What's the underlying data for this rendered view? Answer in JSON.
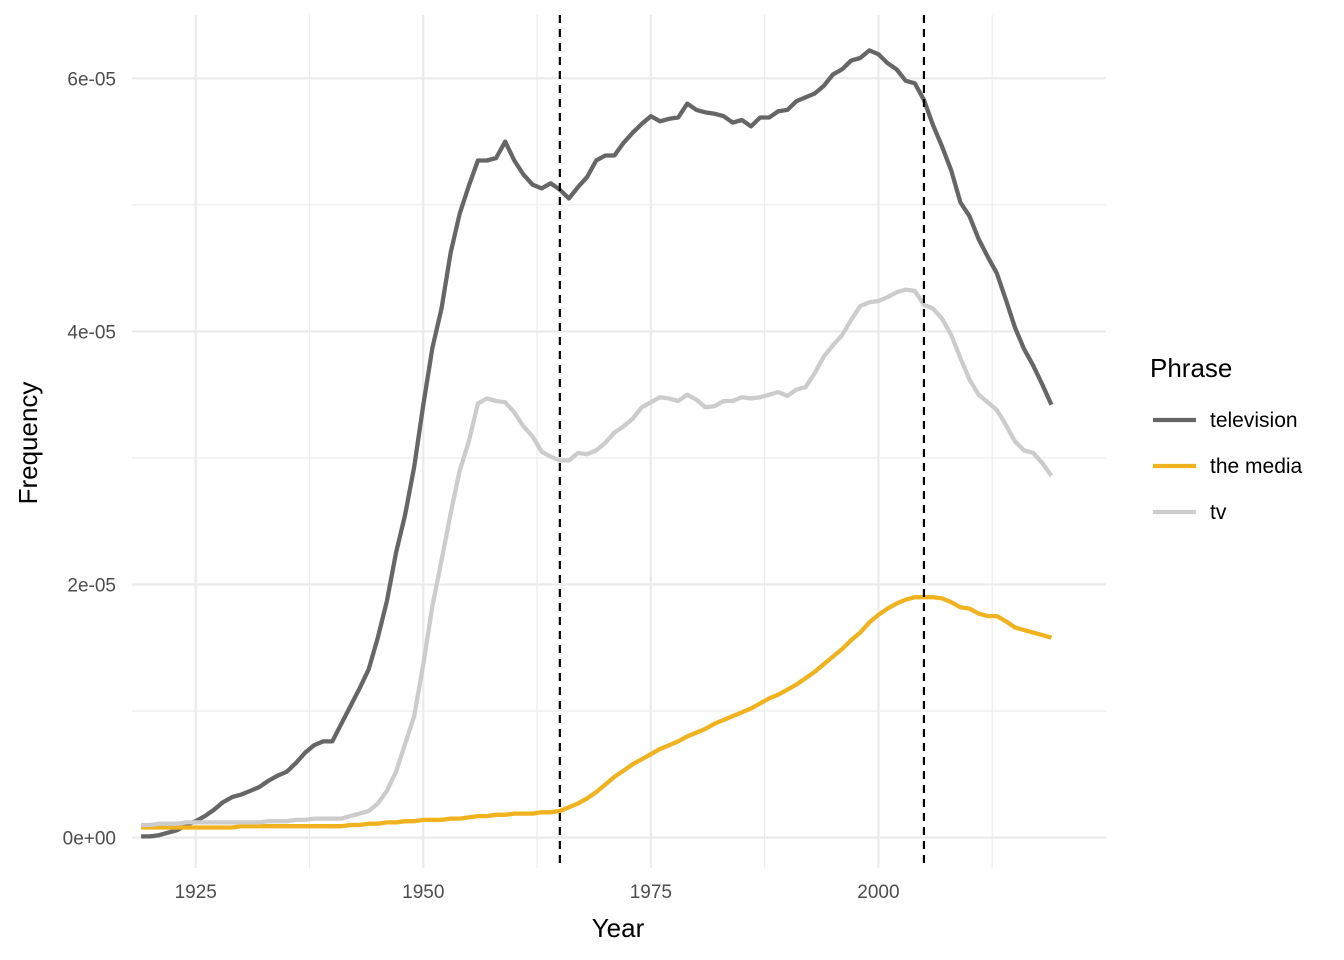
{
  "chart_data": {
    "type": "line",
    "xlabel": "Year",
    "ylabel": "Frequency",
    "xlim": [
      1918,
      2025
    ],
    "ylim": [
      -2.4e-06,
      6.5e-05
    ],
    "x_ticks": [
      1925,
      1950,
      1975,
      2000
    ],
    "x_tick_labels": [
      "1925",
      "1950",
      "1975",
      "2000"
    ],
    "y_ticks": [
      0,
      2e-05,
      4e-05,
      6e-05
    ],
    "y_tick_labels": [
      "0e+00",
      "2e-05",
      "4e-05",
      "6e-05"
    ],
    "y_minor_ticks": [
      1e-05,
      3e-05,
      5e-05
    ],
    "x_minor_ticks": [
      1937.5,
      1962.5,
      1987.5,
      2012.5
    ],
    "grid": true,
    "legend": {
      "title": "Phrase",
      "position": "right"
    },
    "vlines": [
      1965,
      2005
    ],
    "x": [
      1919,
      1920,
      1921,
      1922,
      1923,
      1924,
      1925,
      1926,
      1927,
      1928,
      1929,
      1930,
      1931,
      1932,
      1933,
      1934,
      1935,
      1936,
      1937,
      1938,
      1939,
      1940,
      1941,
      1942,
      1943,
      1944,
      1945,
      1946,
      1947,
      1948,
      1949,
      1950,
      1951,
      1952,
      1953,
      1954,
      1955,
      1956,
      1957,
      1958,
      1959,
      1960,
      1961,
      1962,
      1963,
      1964,
      1965,
      1966,
      1967,
      1968,
      1969,
      1970,
      1971,
      1972,
      1973,
      1974,
      1975,
      1976,
      1977,
      1978,
      1979,
      1980,
      1981,
      1982,
      1983,
      1984,
      1985,
      1986,
      1987,
      1988,
      1989,
      1990,
      1991,
      1992,
      1993,
      1994,
      1995,
      1996,
      1997,
      1998,
      1999,
      2000,
      2001,
      2002,
      2003,
      2004,
      2005,
      2006,
      2007,
      2008,
      2009,
      2010,
      2011,
      2012,
      2013,
      2014,
      2015,
      2016,
      2017,
      2018,
      2019
    ],
    "series": [
      {
        "name": "television",
        "color": "#666666",
        "values": [
          1e-07,
          1e-07,
          2e-07,
          4e-07,
          6e-07,
          1e-06,
          1.3e-06,
          1.7e-06,
          2.2e-06,
          2.8e-06,
          3.2e-06,
          3.4e-06,
          3.7e-06,
          4e-06,
          4.5e-06,
          4.9e-06,
          5.2e-06,
          5.9e-06,
          6.7e-06,
          7.3e-06,
          7.6e-06,
          7.6e-06,
          9e-06,
          1.04e-05,
          1.18e-05,
          1.33e-05,
          1.58e-05,
          1.87e-05,
          2.25e-05,
          2.55e-05,
          2.93e-05,
          3.42e-05,
          3.87e-05,
          4.18e-05,
          4.62e-05,
          4.93e-05,
          5.15e-05,
          5.35e-05,
          5.35e-05,
          5.37e-05,
          5.5e-05,
          5.35e-05,
          5.24e-05,
          5.16e-05,
          5.13e-05,
          5.17e-05,
          5.12e-05,
          5.05e-05,
          5.14e-05,
          5.22e-05,
          5.35e-05,
          5.39e-05,
          5.39e-05,
          5.49e-05,
          5.57e-05,
          5.64e-05,
          5.7e-05,
          5.66e-05,
          5.68e-05,
          5.69e-05,
          5.8e-05,
          5.75e-05,
          5.73e-05,
          5.72e-05,
          5.7e-05,
          5.65e-05,
          5.67e-05,
          5.62e-05,
          5.69e-05,
          5.69e-05,
          5.74e-05,
          5.75e-05,
          5.82e-05,
          5.85e-05,
          5.88e-05,
          5.94e-05,
          6.03e-05,
          6.07e-05,
          6.14e-05,
          6.16e-05,
          6.22e-05,
          6.19e-05,
          6.12e-05,
          6.07e-05,
          5.98e-05,
          5.96e-05,
          5.83e-05,
          5.63e-05,
          5.46e-05,
          5.27e-05,
          5.02e-05,
          4.91e-05,
          4.73e-05,
          4.59e-05,
          4.46e-05,
          4.25e-05,
          4.03e-05,
          3.86e-05,
          3.73e-05,
          3.58e-05,
          3.42e-05
        ]
      },
      {
        "name": "the media",
        "color": "#f0b31f",
        "values": [
          8e-07,
          8e-07,
          8e-07,
          8e-07,
          8e-07,
          8e-07,
          8e-07,
          8e-07,
          8e-07,
          8e-07,
          8e-07,
          9e-07,
          9e-07,
          9e-07,
          9e-07,
          9e-07,
          9e-07,
          9e-07,
          9e-07,
          9e-07,
          9e-07,
          9e-07,
          9e-07,
          1e-06,
          1e-06,
          1.1e-06,
          1.1e-06,
          1.2e-06,
          1.2e-06,
          1.3e-06,
          1.3e-06,
          1.4e-06,
          1.4e-06,
          1.4e-06,
          1.5e-06,
          1.5e-06,
          1.6e-06,
          1.7e-06,
          1.7e-06,
          1.8e-06,
          1.8e-06,
          1.9e-06,
          1.9e-06,
          1.9e-06,
          2e-06,
          2e-06,
          2.1e-06,
          2.4e-06,
          2.7e-06,
          3.1e-06,
          3.6e-06,
          4.2e-06,
          4.8e-06,
          5.3e-06,
          5.8e-06,
          6.2e-06,
          6.6e-06,
          7e-06,
          7.3e-06,
          7.6e-06,
          8e-06,
          8.3e-06,
          8.6e-06,
          9e-06,
          9.3e-06,
          9.6e-06,
          9.9e-06,
          1.02e-05,
          1.06e-05,
          1.1e-05,
          1.13e-05,
          1.17e-05,
          1.21e-05,
          1.26e-05,
          1.31e-05,
          1.37e-05,
          1.43e-05,
          1.49e-05,
          1.56e-05,
          1.62e-05,
          1.7e-05,
          1.76e-05,
          1.81e-05,
          1.85e-05,
          1.88e-05,
          1.9e-05,
          1.9e-05,
          1.9e-05,
          1.89e-05,
          1.86e-05,
          1.82e-05,
          1.81e-05,
          1.77e-05,
          1.75e-05,
          1.75e-05,
          1.71e-05,
          1.66e-05,
          1.64e-05,
          1.62e-05,
          1.6e-05,
          1.58e-05
        ]
      },
      {
        "name": "tv",
        "color": "#cccccc",
        "values": [
          1e-06,
          1e-06,
          1.1e-06,
          1.1e-06,
          1.1e-06,
          1.2e-06,
          1.2e-06,
          1.2e-06,
          1.2e-06,
          1.2e-06,
          1.2e-06,
          1.2e-06,
          1.2e-06,
          1.2e-06,
          1.3e-06,
          1.3e-06,
          1.3e-06,
          1.4e-06,
          1.4e-06,
          1.5e-06,
          1.5e-06,
          1.5e-06,
          1.5e-06,
          1.7e-06,
          1.9e-06,
          2.1e-06,
          2.7e-06,
          3.7e-06,
          5.2e-06,
          7.4e-06,
          9.6e-06,
          1.37e-05,
          1.83e-05,
          2.19e-05,
          2.56e-05,
          2.9e-05,
          3.13e-05,
          3.43e-05,
          3.47e-05,
          3.45e-05,
          3.44e-05,
          3.36e-05,
          3.25e-05,
          3.17e-05,
          3.05e-05,
          3.01e-05,
          2.98e-05,
          2.98e-05,
          3.04e-05,
          3.03e-05,
          3.06e-05,
          3.12e-05,
          3.2e-05,
          3.25e-05,
          3.31e-05,
          3.4e-05,
          3.44e-05,
          3.48e-05,
          3.47e-05,
          3.45e-05,
          3.5e-05,
          3.46e-05,
          3.4e-05,
          3.41e-05,
          3.45e-05,
          3.45e-05,
          3.48e-05,
          3.47e-05,
          3.48e-05,
          3.5e-05,
          3.52e-05,
          3.49e-05,
          3.54e-05,
          3.56e-05,
          3.67e-05,
          3.8e-05,
          3.89e-05,
          3.97e-05,
          4.09e-05,
          4.2e-05,
          4.23e-05,
          4.24e-05,
          4.27e-05,
          4.31e-05,
          4.33e-05,
          4.32e-05,
          4.21e-05,
          4.18e-05,
          4.1e-05,
          3.97e-05,
          3.79e-05,
          3.62e-05,
          3.5e-05,
          3.44e-05,
          3.38e-05,
          3.26e-05,
          3.13e-05,
          3.06e-05,
          3.04e-05,
          2.96e-05,
          2.86e-05
        ]
      }
    ]
  }
}
